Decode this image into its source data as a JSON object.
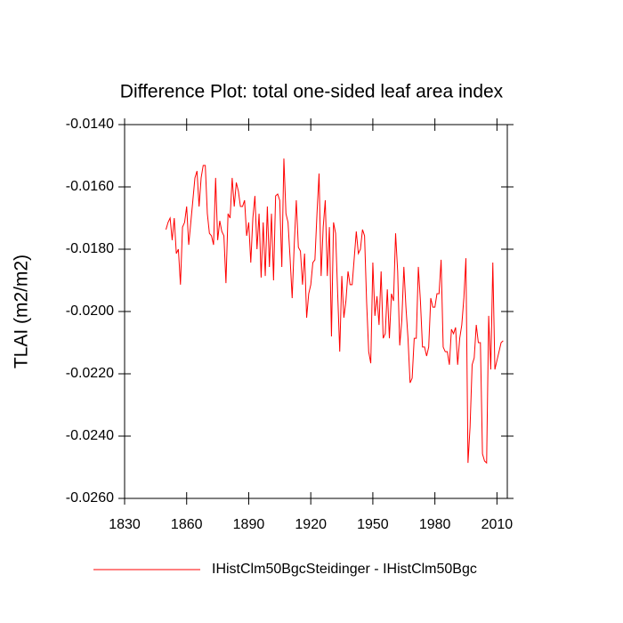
{
  "chart_data": {
    "type": "line",
    "title": "Difference Plot: total one-sided leaf area index",
    "ylabel": "TLAI  (m2/m2)",
    "xlim": [
      1830,
      2015
    ],
    "xticks": [
      1830,
      1860,
      1890,
      1920,
      1950,
      1980,
      2010
    ],
    "ylim": [
      -0.026,
      -0.014
    ],
    "yticks": [
      {
        "value": -0.026,
        "label": "-0.0260"
      },
      {
        "value": -0.024,
        "label": "-0.0240"
      },
      {
        "value": -0.022,
        "label": "-0.0220"
      },
      {
        "value": -0.02,
        "label": "-0.0200"
      },
      {
        "value": -0.018,
        "label": "-0.0180"
      },
      {
        "value": -0.016,
        "label": "-0.0160"
      },
      {
        "value": -0.014,
        "label": "-0.0140"
      }
    ],
    "grid": false,
    "x": [
      1850,
      1851,
      1852,
      1853,
      1854,
      1855,
      1856,
      1857,
      1858,
      1859,
      1860,
      1861,
      1862,
      1863,
      1864,
      1865,
      1866,
      1867,
      1868,
      1869,
      1870,
      1871,
      1872,
      1873,
      1874,
      1875,
      1876,
      1877,
      1878,
      1879,
      1880,
      1881,
      1882,
      1883,
      1884,
      1885,
      1886,
      1887,
      1888,
      1889,
      1890,
      1891,
      1892,
      1893,
      1894,
      1895,
      1896,
      1897,
      1898,
      1899,
      1900,
      1901,
      1902,
      1903,
      1904,
      1905,
      1906,
      1907,
      1908,
      1909,
      1910,
      1911,
      1912,
      1913,
      1914,
      1915,
      1916,
      1917,
      1918,
      1919,
      1920,
      1921,
      1922,
      1923,
      1924,
      1925,
      1926,
      1927,
      1928,
      1929,
      1930,
      1931,
      1932,
      1933,
      1934,
      1935,
      1936,
      1937,
      1938,
      1939,
      1940,
      1941,
      1942,
      1943,
      1944,
      1945,
      1946,
      1947,
      1948,
      1949,
      1950,
      1951,
      1952,
      1953,
      1954,
      1955,
      1956,
      1957,
      1958,
      1959,
      1960,
      1961,
      1962,
      1963,
      1964,
      1965,
      1966,
      1967,
      1968,
      1969,
      1970,
      1971,
      1972,
      1973,
      1974,
      1975,
      1976,
      1977,
      1978,
      1979,
      1980,
      1981,
      1982,
      1983,
      1984,
      1985,
      1986,
      1987,
      1988,
      1989,
      1990,
      1991,
      1992,
      1993,
      1994,
      1995,
      1996,
      1997,
      1998,
      1999,
      2000,
      2001,
      2002,
      2003,
      2004,
      2005,
      2006,
      2007,
      2008,
      2009,
      2010,
      2011,
      2012,
      2013
    ],
    "series": [
      {
        "name": "IHistClm50BgcSteidinger - IHistClm50Bgc",
        "color": "#ff0000",
        "values": [
          -0.01737,
          -0.01714,
          -0.017,
          -0.01771,
          -0.017,
          -0.01814,
          -0.018,
          -0.01914,
          -0.01729,
          -0.01714,
          -0.01663,
          -0.01786,
          -0.01714,
          -0.01643,
          -0.01571,
          -0.01549,
          -0.01663,
          -0.01571,
          -0.01531,
          -0.01531,
          -0.01686,
          -0.01749,
          -0.01757,
          -0.01786,
          -0.01571,
          -0.01771,
          -0.01709,
          -0.01743,
          -0.01757,
          -0.01909,
          -0.01686,
          -0.017,
          -0.01571,
          -0.01663,
          -0.01586,
          -0.01614,
          -0.01663,
          -0.01663,
          -0.01643,
          -0.01757,
          -0.01714,
          -0.01843,
          -0.017,
          -0.01629,
          -0.018,
          -0.01686,
          -0.01891,
          -0.01714,
          -0.01886,
          -0.01663,
          -0.01857,
          -0.01686,
          -0.019,
          -0.01629,
          -0.01623,
          -0.01643,
          -0.01857,
          -0.01509,
          -0.01686,
          -0.01714,
          -0.01829,
          -0.01957,
          -0.01786,
          -0.01643,
          -0.01794,
          -0.01806,
          -0.01914,
          -0.01814,
          -0.0202,
          -0.01943,
          -0.01914,
          -0.01843,
          -0.01834,
          -0.01686,
          -0.01557,
          -0.01886,
          -0.01729,
          -0.01643,
          -0.01886,
          -0.01729,
          -0.0208,
          -0.01714,
          -0.01749,
          -0.01943,
          -0.02129,
          -0.01886,
          -0.0202,
          -0.01966,
          -0.01871,
          -0.01914,
          -0.01914,
          -0.01829,
          -0.01743,
          -0.01814,
          -0.018,
          -0.01737,
          -0.01757,
          -0.01971,
          -0.02129,
          -0.02166,
          -0.01843,
          -0.02014,
          -0.01951,
          -0.02043,
          -0.01871,
          -0.02086,
          -0.02071,
          -0.01929,
          -0.02086,
          -0.01943,
          -0.01966,
          -0.01749,
          -0.01871,
          -0.02109,
          -0.02029,
          -0.01857,
          -0.01986,
          -0.02086,
          -0.02229,
          -0.02214,
          -0.02086,
          -0.02086,
          -0.01857,
          -0.01966,
          -0.02114,
          -0.02114,
          -0.02143,
          -0.02114,
          -0.01957,
          -0.01986,
          -0.01986,
          -0.01943,
          -0.01943,
          -0.01834,
          -0.02114,
          -0.02129,
          -0.02129,
          -0.02171,
          -0.02057,
          -0.02071,
          -0.02051,
          -0.02171,
          -0.02086,
          -0.02043,
          -0.01957,
          -0.01829,
          -0.02486,
          -0.02371,
          -0.02171,
          -0.02149,
          -0.02043,
          -0.021,
          -0.021,
          -0.02457,
          -0.0248,
          -0.02486,
          -0.02014,
          -0.02186,
          -0.01843,
          -0.02186,
          -0.02157,
          -0.02129,
          -0.021,
          -0.02094
        ]
      }
    ]
  }
}
